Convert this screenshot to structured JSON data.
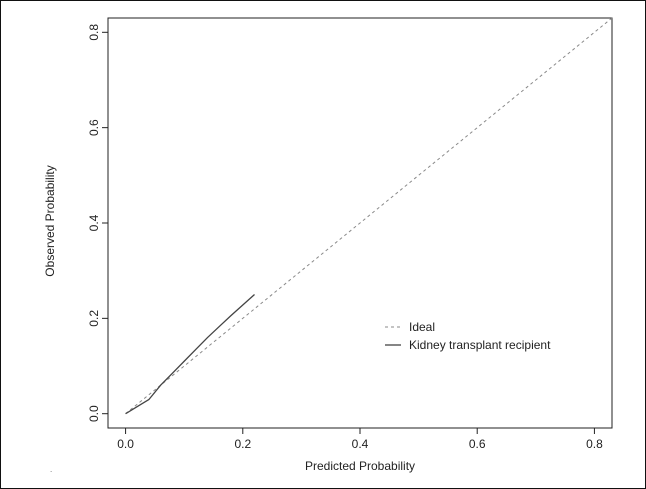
{
  "chart_data": {
    "type": "line",
    "title": "",
    "xlabel": "Predicted Probability",
    "ylabel": "Observed Probability",
    "xlim": [
      -0.03,
      0.83
    ],
    "ylim": [
      -0.03,
      0.83
    ],
    "x_ticks": [
      "0.0",
      "0.2",
      "0.4",
      "0.6",
      "0.8"
    ],
    "y_ticks": [
      "0.0",
      "0.2",
      "0.4",
      "0.6",
      "0.8"
    ],
    "grid": false,
    "legend_position": "center-right",
    "series": [
      {
        "name": "Ideal",
        "style": "dashed",
        "color": "#8a8a8a",
        "x": [
          0.0,
          0.83
        ],
        "y": [
          0.0,
          0.83
        ]
      },
      {
        "name": "Kidney transplant recipient",
        "style": "solid",
        "color": "#444444",
        "x": [
          0.0,
          0.02,
          0.04,
          0.06,
          0.08,
          0.1,
          0.12,
          0.14,
          0.16,
          0.18,
          0.2,
          0.22
        ],
        "y": [
          0.0,
          0.015,
          0.03,
          0.06,
          0.085,
          0.11,
          0.135,
          0.16,
          0.183,
          0.206,
          0.228,
          0.25
        ]
      }
    ]
  }
}
